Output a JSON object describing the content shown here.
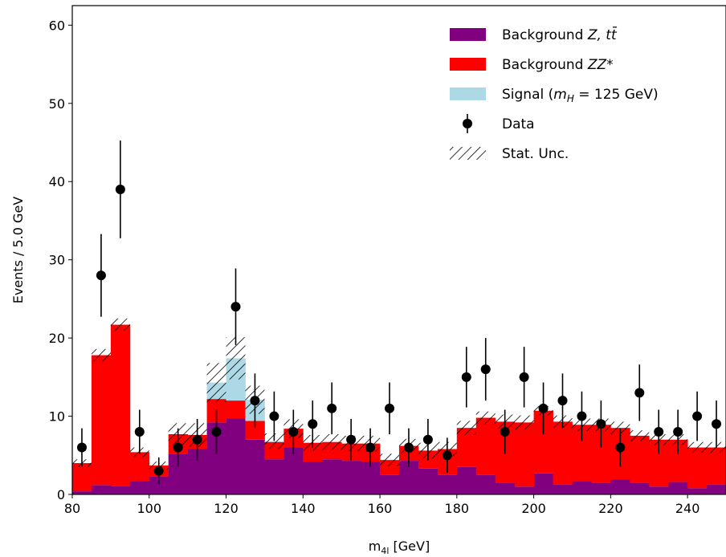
{
  "chart_data": {
    "type": "histogram",
    "xlabel_main": "m",
    "xlabel_sub": "4l",
    "xlabel_unit": " [GeV]",
    "ylabel": "Events / 5.0 GeV",
    "xlim": [
      80,
      250
    ],
    "ylim": [
      0,
      62.5
    ],
    "xticks": [
      80,
      100,
      120,
      140,
      160,
      180,
      200,
      220,
      240
    ],
    "yticks": [
      0,
      10,
      20,
      30,
      40,
      50,
      60
    ],
    "bin_edges": [
      80,
      85,
      90,
      95,
      100,
      105,
      110,
      115,
      120,
      125,
      130,
      135,
      140,
      145,
      150,
      155,
      160,
      165,
      170,
      175,
      180,
      185,
      190,
      195,
      200,
      205,
      210,
      215,
      220,
      225,
      230,
      235,
      240,
      245,
      250
    ],
    "series": [
      {
        "name": "Background Z, tt̄",
        "color": "#800080",
        "values": [
          0.4,
          1.2,
          1.1,
          1.7,
          2.3,
          5.2,
          5.8,
          9.2,
          9.7,
          7.0,
          4.5,
          6.0,
          4.2,
          4.5,
          4.3,
          4.2,
          2.5,
          4.3,
          3.3,
          2.5,
          3.5,
          2.5,
          1.5,
          1.0,
          2.7,
          1.3,
          1.7,
          1.5,
          1.9,
          1.5,
          1.0,
          1.6,
          0.8,
          1.3
        ]
      },
      {
        "name": "Background ZZ*",
        "color": "#ff0000",
        "values": [
          3.6,
          16.6,
          20.6,
          3.7,
          1.4,
          2.5,
          1.8,
          3.0,
          2.3,
          2.4,
          2.2,
          2.4,
          2.4,
          2.2,
          2.2,
          2.3,
          1.9,
          1.9,
          2.3,
          3.3,
          5.0,
          7.3,
          7.8,
          8.2,
          8.0,
          8.0,
          7.2,
          7.4,
          6.6,
          6.0,
          6.0,
          5.4,
          5.2,
          4.7
        ]
      },
      {
        "name": "Signal (mH = 125 GeV)",
        "color": "#add8e6",
        "values": [
          0,
          0,
          0,
          0,
          0,
          0,
          0,
          2.1,
          5.4,
          2.7,
          0.1,
          0,
          0,
          0,
          0,
          0,
          0,
          0,
          0,
          0,
          0,
          0,
          0,
          0,
          0,
          0,
          0,
          0,
          0,
          0,
          0,
          0,
          0,
          0
        ]
      }
    ],
    "stat_unc": [
      0.5,
      0.8,
      0.8,
      0.6,
      0.5,
      1.4,
      1.5,
      2.5,
      2.7,
      1.8,
      1.0,
      1.2,
      1.0,
      1.0,
      1.0,
      1.0,
      0.8,
      0.9,
      1.0,
      0.9,
      0.9,
      0.8,
      0.9,
      0.9,
      0.6,
      0.8,
      0.8,
      0.8,
      0.8,
      0.7,
      0.7,
      0.7,
      0.7,
      0.7
    ],
    "data": {
      "name": "Data",
      "x": [
        82.5,
        87.5,
        92.5,
        97.5,
        102.5,
        107.5,
        112.5,
        117.5,
        122.5,
        127.5,
        132.5,
        137.5,
        142.5,
        147.5,
        152.5,
        157.5,
        162.5,
        167.5,
        172.5,
        177.5,
        182.5,
        187.5,
        192.5,
        197.5,
        202.5,
        207.5,
        212.5,
        217.5,
        222.5,
        227.5,
        232.5,
        237.5,
        242.5,
        247.5
      ],
      "y": [
        6,
        28,
        39,
        8,
        3,
        6,
        7,
        8,
        24,
        12,
        10,
        8,
        9,
        11,
        7,
        6,
        11,
        6,
        7,
        5,
        15,
        16,
        8,
        15,
        11,
        12,
        10,
        9,
        6,
        13,
        8,
        8,
        10,
        9
      ]
    },
    "legend": {
      "position": "upper right",
      "entries": [
        {
          "kind": "patch",
          "color": "#800080",
          "label_plain": "Background ",
          "label_math": "Z, tt̄"
        },
        {
          "kind": "patch",
          "color": "#ff0000",
          "label_plain": "Background ",
          "label_math": "ZZ*"
        },
        {
          "kind": "patch",
          "color": "#add8e6",
          "label_plain": "Signal (",
          "label_math": "m",
          "label_sub": "H",
          "label_tail": " = 125 GeV)"
        },
        {
          "kind": "marker",
          "color": "#000000",
          "label_plain": "Data"
        },
        {
          "kind": "hatch",
          "color": "#000000",
          "label_plain": "Stat. Unc."
        }
      ]
    }
  }
}
